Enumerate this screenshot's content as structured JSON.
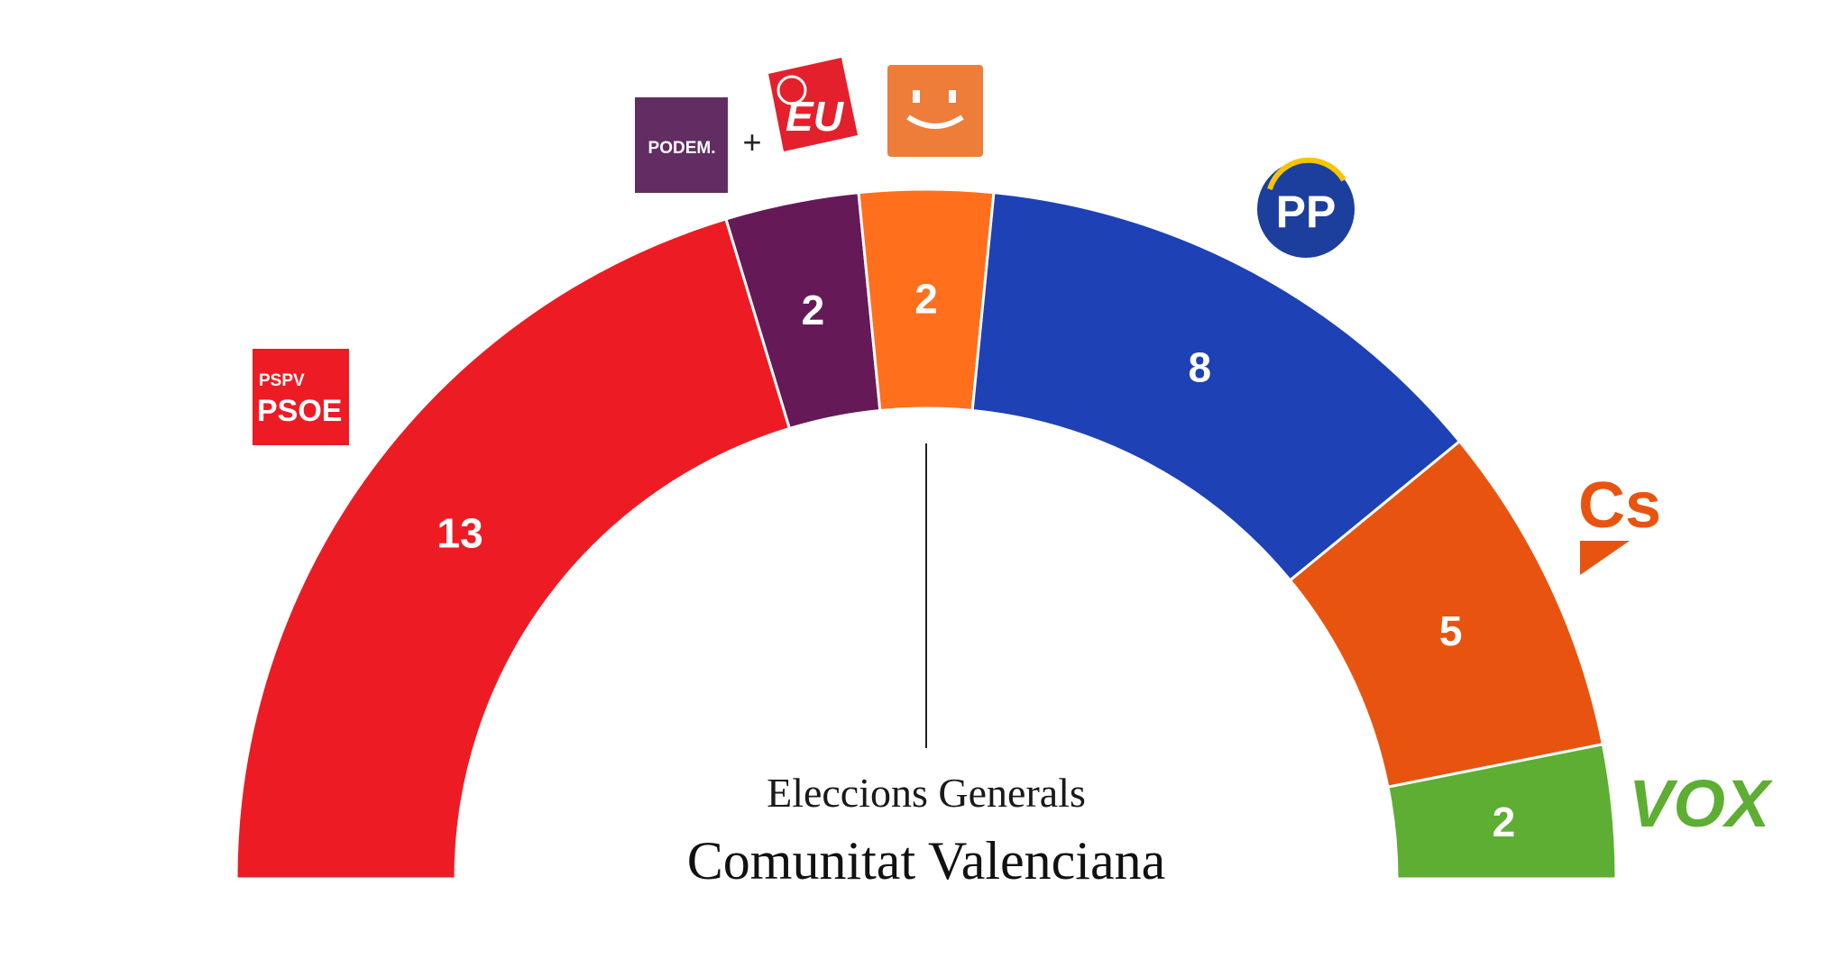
{
  "chart_data": {
    "type": "pie",
    "subtype": "parliament-hemicycle",
    "title": "Eleccions Generals",
    "subtitle": "Comunitat Valenciana",
    "total_seats": 32,
    "majority_line": true,
    "series": [
      {
        "name": "PSPV-PSOE",
        "value": 13,
        "color": "#ED1C24",
        "icon": "pspv-psoe-logo"
      },
      {
        "name": "Podem + EU",
        "value": 2,
        "color": "#651A57",
        "icon": "podem-eu-logo"
      },
      {
        "name": "Compromís",
        "value": 2,
        "color": "#FF6F1C",
        "icon": "compromis-logo"
      },
      {
        "name": "PP",
        "value": 8,
        "color": "#1E41B5",
        "icon": "pp-logo"
      },
      {
        "name": "Cs",
        "value": 5,
        "color": "#E8540F",
        "icon": "cs-logo"
      },
      {
        "name": "VOX",
        "value": 2,
        "color": "#5DAE33",
        "icon": "vox-logo"
      }
    ]
  },
  "logos": {
    "pspv_top": "PSPV",
    "psoe": "PSOE",
    "podem": "PODEM.",
    "plus": "+",
    "eu": "EU",
    "pp": "PP",
    "cs": "Cs",
    "vox": "VOX"
  }
}
